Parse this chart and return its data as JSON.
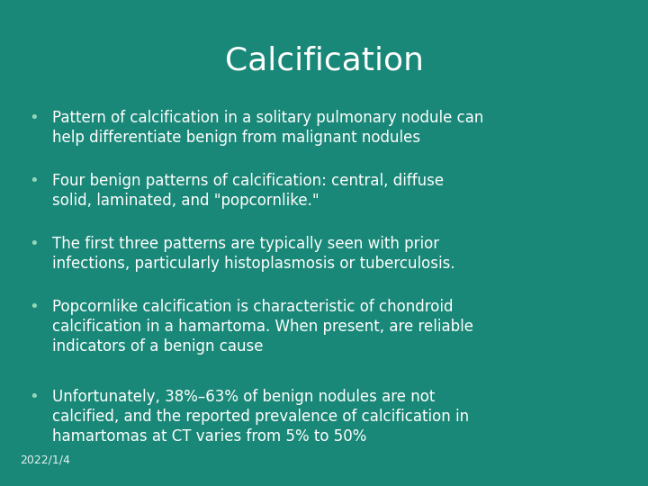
{
  "title": "Calcification",
  "title_color": "#ffffff",
  "title_fontsize": 26,
  "background_color": "#1a8878",
  "bullet_color": "#90d8b8",
  "text_color": "#ffffff",
  "date_text": "2022/1/4",
  "date_fontsize": 9,
  "bullet_fontsize": 12,
  "bullets": [
    "Pattern of calcification in a solitary pulmonary nodule can\nhelp differentiate benign from malignant nodules",
    "Four benign patterns of calcification: central, diffuse\nsolid, laminated, and \"popcornlike.\"",
    "The first three patterns are typically seen with prior\ninfections, particularly histoplasmosis or tuberculosis.",
    "Popcornlike calcification is characteristic of chondroid\ncalcification in a hamartoma. When present, are reliable\nindicators of a benign cause",
    "Unfortunately, 38%–63% of benign nodules are not\ncalcified, and the reported prevalence of calcification in\nhamartomas at CT varies from 5% to 50%"
  ]
}
